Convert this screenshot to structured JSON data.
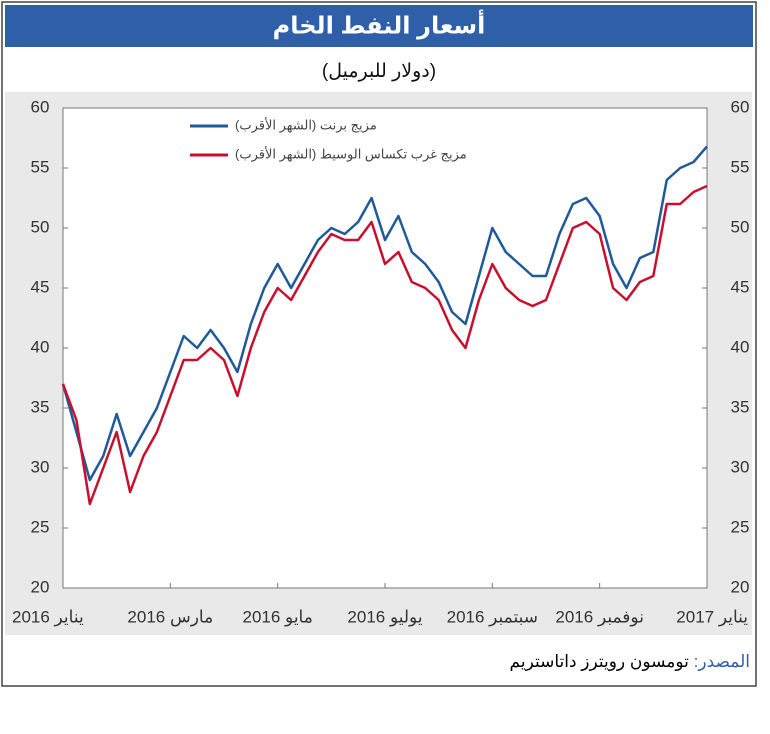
{
  "chart_data": {
    "type": "line",
    "title": "أسعار النفط الخام",
    "subtitle": "(دولار للبرميل)",
    "source_label": "المصدر:",
    "source_text": "تومسون رويترز داتاستريم",
    "x": [
      0,
      0.25,
      0.5,
      0.75,
      1,
      1.25,
      1.5,
      1.75,
      2,
      2.25,
      2.5,
      2.75,
      3,
      3.25,
      3.5,
      3.75,
      4,
      4.25,
      4.5,
      4.75,
      5,
      5.25,
      5.5,
      5.75,
      6,
      6.25,
      6.5,
      6.75,
      7,
      7.25,
      7.5,
      7.75,
      8,
      8.25,
      8.5,
      8.75,
      9,
      9.25,
      9.5,
      9.75,
      10,
      10.25,
      10.5,
      10.75,
      11,
      11.25,
      11.5,
      11.75,
      12
    ],
    "xlim": [
      0,
      12
    ],
    "xticks": [
      {
        "value": 0,
        "label": "يناير 2016"
      },
      {
        "value": 2,
        "label": "مارس 2016"
      },
      {
        "value": 4,
        "label": "مايو 2016"
      },
      {
        "value": 6,
        "label": "يوليو 2016"
      },
      {
        "value": 8,
        "label": "سبتمبر 2016"
      },
      {
        "value": 10,
        "label": "نوفمبر 2016"
      },
      {
        "value": 12,
        "label": "يناير 2017"
      }
    ],
    "ylim": [
      20,
      60
    ],
    "yticks": [
      20,
      25,
      30,
      35,
      40,
      45,
      50,
      55,
      60
    ],
    "grid": false,
    "legend": "top-left",
    "series": [
      {
        "name": "مزيج برنت (الشهر الأقرب)",
        "color": "#1f5a9a",
        "values": [
          37,
          33,
          29,
          31,
          34.5,
          31,
          33,
          35,
          38,
          41,
          40,
          41.5,
          40,
          38,
          42,
          45,
          47,
          45,
          47,
          49,
          50,
          49.5,
          50.5,
          52.5,
          49,
          51,
          48,
          47,
          45.5,
          43,
          42,
          46,
          50,
          48,
          47,
          46,
          46,
          49.5,
          52,
          52.5,
          51,
          47,
          45,
          47.5,
          48,
          54,
          55,
          55.5,
          56.8
        ]
      },
      {
        "name": "مزيج غرب تكساس الوسيط (الشهر الأقرب)",
        "color": "#c8102e",
        "values": [
          37,
          34,
          27,
          30,
          33,
          28,
          31,
          33,
          36,
          39,
          39,
          40,
          39,
          36,
          40,
          43,
          45,
          44,
          46,
          48,
          49.5,
          49,
          49,
          50.5,
          47,
          48,
          45.5,
          45,
          44,
          41.5,
          40,
          44,
          47,
          45,
          44,
          43.5,
          44,
          47,
          50,
          50.5,
          49.5,
          45,
          44,
          45.5,
          46,
          52,
          52,
          53,
          53.5
        ]
      }
    ]
  }
}
